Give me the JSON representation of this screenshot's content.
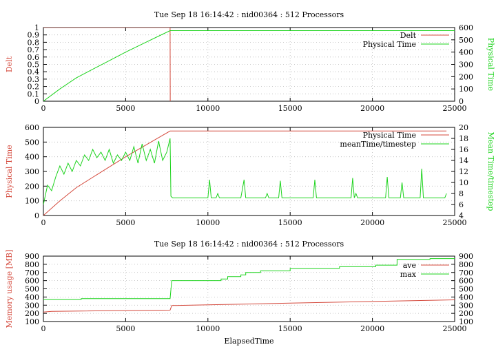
{
  "colors": {
    "red": "#d4483b",
    "green": "#1bd31b",
    "axis": "#000000",
    "grid": "#b8b8b8"
  },
  "chart_data": [
    {
      "type": "line",
      "title": "Tue Sep 18 16:14:42 : nid00364 : 512 Processors",
      "xlabel": "",
      "ylabel": "Delt",
      "y2label": "Physical Time",
      "xlim": [
        0,
        25000
      ],
      "ylim": [
        0,
        1
      ],
      "y2lim": [
        0,
        600
      ],
      "xticks": [
        0,
        5000,
        10000,
        15000,
        20000,
        25000
      ],
      "yticks": [
        0,
        0.1,
        0.2,
        0.3,
        0.4,
        0.5,
        0.6,
        0.7,
        0.8,
        0.9,
        1
      ],
      "y2ticks": [
        0,
        100,
        200,
        300,
        400,
        500,
        600
      ],
      "grid": true,
      "legend_position": "top-right",
      "series": [
        {
          "name": "Delt",
          "color": "red",
          "axis": "y",
          "x": [
            0,
            7650,
            7700,
            7710
          ],
          "y": [
            1,
            1,
            1,
            0
          ]
        },
        {
          "name": "Physical Time",
          "color": "green",
          "axis": "y2",
          "x": [
            0,
            1000,
            2000,
            3000,
            4000,
            5000,
            6000,
            7000,
            7700,
            10000,
            15000,
            20000,
            25000
          ],
          "y": [
            0,
            100,
            190,
            260,
            330,
            400,
            465,
            530,
            575,
            575,
            575,
            575,
            575
          ]
        }
      ]
    },
    {
      "type": "line",
      "title": "",
      "xlabel": "",
      "ylabel": "Physical Time",
      "y2label": "Mean Time/timestep",
      "xlim": [
        0,
        25000
      ],
      "ylim": [
        0,
        600
      ],
      "y2lim": [
        4,
        20
      ],
      "xticks": [
        0,
        5000,
        10000,
        15000,
        20000,
        25000
      ],
      "yticks": [
        0,
        100,
        200,
        300,
        400,
        500,
        600
      ],
      "y2ticks": [
        4,
        6,
        8,
        10,
        12,
        14,
        16,
        18,
        20
      ],
      "grid": true,
      "legend_position": "top-right",
      "series": [
        {
          "name": "Physical Time",
          "color": "red",
          "axis": "y",
          "x": [
            0,
            1000,
            2000,
            3000,
            4000,
            5000,
            6000,
            7000,
            7700,
            10000,
            15000,
            20000,
            24500
          ],
          "y": [
            0,
            100,
            190,
            260,
            330,
            400,
            465,
            530,
            575,
            575,
            575,
            575,
            575
          ]
        },
        {
          "name": "meanTime/timestep",
          "color": "green",
          "axis": "y2",
          "x": [
            0,
            250,
            500,
            750,
            1000,
            1250,
            1500,
            1750,
            2000,
            2250,
            2500,
            2750,
            3000,
            3250,
            3500,
            3750,
            4000,
            4250,
            4500,
            4750,
            5000,
            5250,
            5500,
            5750,
            6000,
            6250,
            6500,
            6750,
            7000,
            7250,
            7500,
            7700,
            7750,
            7850,
            8000,
            9000,
            10000,
            10100,
            10200,
            10500,
            10600,
            10700,
            12000,
            12200,
            12300,
            12400,
            13500,
            13600,
            13700,
            14300,
            14400,
            14500,
            16400,
            16500,
            16600,
            16700,
            18700,
            18800,
            18900,
            19000,
            19100,
            20800,
            20900,
            21000,
            21700,
            21800,
            21900,
            22900,
            23000,
            23100,
            24400,
            24500
          ],
          "y": [
            6,
            9.5,
            8.5,
            11,
            13,
            11.5,
            13.5,
            12,
            14,
            13,
            15,
            14,
            16,
            14.5,
            15.5,
            14,
            16,
            13.5,
            15,
            14,
            15.5,
            14,
            16.5,
            13.5,
            17,
            14,
            16,
            13.5,
            17.5,
            14,
            15.5,
            18,
            7.5,
            7.2,
            7.2,
            7.2,
            7.2,
            10.5,
            7.2,
            7.2,
            8,
            7.2,
            7.2,
            10.5,
            7.2,
            7.2,
            7.2,
            8,
            7.2,
            7.2,
            10.3,
            7.2,
            7.2,
            10.5,
            7.2,
            7.2,
            7.2,
            10.8,
            7.2,
            8,
            7.2,
            7.2,
            11,
            7.2,
            7.2,
            10,
            7.2,
            7.2,
            12.5,
            7.2,
            7.2,
            8
          ]
        }
      ]
    },
    {
      "type": "line",
      "title": "Tue Sep 18 16:14:42 : nid00364 : 512 Processors",
      "xlabel": "ElapsedTime",
      "ylabel": "Memory usage [MB]",
      "y2label": "",
      "xlim": [
        0,
        25000
      ],
      "ylim": [
        100,
        900
      ],
      "y2lim": [
        100,
        900
      ],
      "xticks": [
        0,
        5000,
        10000,
        15000,
        20000,
        25000
      ],
      "yticks": [
        100,
        200,
        300,
        400,
        500,
        600,
        700,
        800,
        900
      ],
      "y2ticks": [
        100,
        200,
        300,
        400,
        500,
        600,
        700,
        800,
        900
      ],
      "grid": true,
      "legend_position": "top-right",
      "series": [
        {
          "name": "ave",
          "color": "red",
          "axis": "y",
          "x": [
            0,
            500,
            7700,
            7800,
            10000,
            15000,
            20000,
            25000
          ],
          "y": [
            215,
            225,
            240,
            295,
            305,
            325,
            345,
            365
          ]
        },
        {
          "name": "max",
          "color": "green",
          "axis": "y",
          "x": [
            0,
            2300,
            2300,
            7700,
            7800,
            10800,
            10800,
            11200,
            11200,
            12000,
            12000,
            12300,
            12300,
            13200,
            13200,
            15000,
            15000,
            18000,
            18000,
            20200,
            20200,
            21500,
            21500,
            23500,
            23500,
            25000
          ],
          "y": [
            370,
            370,
            380,
            380,
            600,
            600,
            620,
            620,
            650,
            650,
            670,
            670,
            700,
            700,
            720,
            720,
            750,
            750,
            770,
            770,
            790,
            790,
            860,
            860,
            870,
            870
          ]
        }
      ]
    }
  ]
}
